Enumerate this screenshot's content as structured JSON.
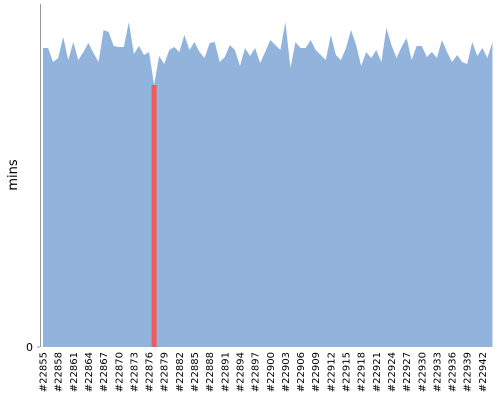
{
  "chart_data": {
    "type": "area",
    "y_label": "mins",
    "categories": [
      "#22855",
      null,
      null,
      "#22858",
      null,
      null,
      "#22861",
      null,
      null,
      "#22864",
      null,
      null,
      "#22867",
      null,
      null,
      "#22870",
      null,
      null,
      "#22873",
      null,
      null,
      "#22876",
      null,
      null,
      "#22879",
      null,
      null,
      "#22882",
      null,
      null,
      "#22885",
      null,
      null,
      "#22888",
      null,
      null,
      "#22891",
      null,
      null,
      "#22894",
      null,
      null,
      "#22897",
      null,
      null,
      "#22900",
      null,
      null,
      "#22903",
      null,
      null,
      "#22906",
      null,
      null,
      "#22909",
      null,
      null,
      "#22912",
      null,
      null,
      "#22915",
      null,
      null,
      "#22918",
      null,
      null,
      "#22921",
      null,
      null,
      "#22924",
      null,
      null,
      "#22927",
      null,
      null,
      "#22930",
      null,
      null,
      "#22933",
      null,
      null,
      "#22936",
      null,
      null,
      "#22939",
      null,
      null,
      "#22942",
      null,
      null
    ],
    "values": [
      29.9,
      29.9,
      28.5,
      28.9,
      31,
      28.7,
      30.5,
      28.7,
      29.5,
      30.4,
      29.4,
      28.5,
      31.7,
      31.5,
      30.1,
      30,
      30,
      32.5,
      29.3,
      30.1,
      29.2,
      29.5,
      26.2,
      29.1,
      28.3,
      29.7,
      30,
      29.5,
      31.2,
      29.7,
      30.5,
      29.5,
      28.9,
      30.4,
      30.5,
      28.5,
      29,
      30.2,
      29.7,
      28.1,
      29.9,
      29.1,
      29.9,
      28.4,
      29.5,
      30.7,
      30.2,
      29.7,
      32.5,
      27.9,
      30.5,
      29.9,
      29.9,
      30.7,
      29.7,
      29.2,
      28.7,
      31.2,
      29.2,
      28.7,
      29.9,
      31.7,
      30.2,
      28.1,
      29.5,
      28.9,
      29.7,
      28.5,
      31.9,
      30.2,
      28.9,
      30,
      30.9,
      28.7,
      30.1,
      30.1,
      29,
      29.5,
      28.9,
      30.7,
      29.5,
      28.5,
      29.2,
      28.5,
      28.3,
      30.5,
      29.1,
      29.9,
      28.9,
      30.5
    ],
    "color": "#92b3db",
    "highlight_index": 22,
    "highlight_color": "#f25a5a",
    "ylim": [
      0,
      34.2
    ],
    "yticks": [
      0
    ]
  }
}
